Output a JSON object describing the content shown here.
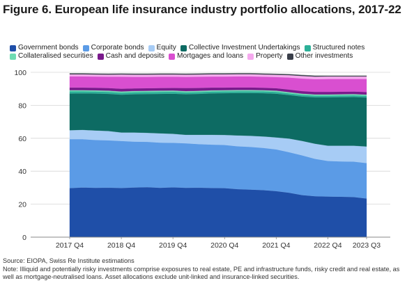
{
  "figure": {
    "title": "Figure 6. European life insurance industry portfolio allocations, 2017-22",
    "source": "Source: EIOPA, Swiss Re Institute estimations",
    "note": "Note: Illiquid and potentially risky investments comprise exposures to real estate, PE and infrastructure funds, risky credit and real estate, as well as mortgage-neutralised loans. Asset allocations exclude unit-linked and insurance-linked securities."
  },
  "chart_data": {
    "type": "area",
    "stacked": true,
    "x": [
      "2017 Q4",
      "2018 Q1",
      "2018 Q2",
      "2018 Q3",
      "2018 Q4",
      "2019 Q1",
      "2019 Q2",
      "2019 Q3",
      "2019 Q4",
      "2020 Q1",
      "2020 Q2",
      "2020 Q3",
      "2020 Q4",
      "2021 Q1",
      "2021 Q2",
      "2021 Q3",
      "2021 Q4",
      "2022 Q1",
      "2022 Q2",
      "2022 Q3",
      "2022 Q4",
      "2023 Q1",
      "2023 Q2",
      "2023 Q3"
    ],
    "xticks": [
      "2017 Q4",
      "2018 Q4",
      "2019 Q4",
      "2020 Q4",
      "2021 Q4",
      "2022 Q4",
      "2023 Q3"
    ],
    "ylim": [
      0,
      100
    ],
    "yticks": [
      0,
      20,
      40,
      60,
      80,
      100
    ],
    "grid": true,
    "legend_position": "top",
    "series": [
      {
        "name": "Government bonds",
        "color": "#1f4fa8",
        "values": [
          29.8,
          30.2,
          30.0,
          30.1,
          29.9,
          30.2,
          30.4,
          30.0,
          30.3,
          30.0,
          30.1,
          29.9,
          29.8,
          29.2,
          28.9,
          28.6,
          28.0,
          27.0,
          25.6,
          24.9,
          24.7,
          24.6,
          24.4,
          23.5
        ]
      },
      {
        "name": "Corporate bonds",
        "color": "#5b9be6",
        "values": [
          29.7,
          29.3,
          29.0,
          28.7,
          28.5,
          27.8,
          27.5,
          27.4,
          27.0,
          27.0,
          26.4,
          26.3,
          26.2,
          26.0,
          25.9,
          25.6,
          25.3,
          24.6,
          24.1,
          22.7,
          21.6,
          21.4,
          21.5,
          21.5
        ]
      },
      {
        "name": "Equity",
        "color": "#a7ccf5",
        "values": [
          5.4,
          5.6,
          5.7,
          5.6,
          5.1,
          5.5,
          5.4,
          5.6,
          5.4,
          5.1,
          5.6,
          5.9,
          6.0,
          6.5,
          6.7,
          6.9,
          7.2,
          8.2,
          8.7,
          9.1,
          9.2,
          9.5,
          9.6,
          10.0
        ]
      },
      {
        "name": "Collective Investment Undertakings",
        "color": "#0d6b63",
        "values": [
          22.3,
          22.2,
          22.5,
          22.6,
          23.0,
          23.3,
          23.6,
          24.0,
          24.4,
          24.7,
          24.9,
          25.2,
          25.4,
          25.8,
          26.0,
          26.3,
          26.6,
          26.5,
          27.0,
          28.2,
          29.4,
          29.5,
          29.6,
          29.8
        ]
      },
      {
        "name": "Structured notes",
        "color": "#2cb098",
        "values": [
          1.3,
          1.2,
          1.2,
          1.2,
          1.2,
          1.2,
          1.2,
          1.2,
          1.2,
          1.1,
          1.1,
          1.1,
          1.1,
          1.1,
          1.1,
          1.1,
          1.1,
          1.0,
          1.0,
          1.0,
          1.0,
          1.0,
          1.0,
          1.0
        ]
      },
      {
        "name": "Collateralised securities",
        "color": "#6fdcb2",
        "values": [
          0.7,
          0.7,
          0.7,
          0.7,
          0.7,
          0.7,
          0.7,
          0.7,
          0.7,
          0.7,
          0.7,
          0.7,
          0.7,
          0.7,
          0.7,
          0.7,
          0.7,
          0.7,
          0.7,
          0.7,
          0.7,
          0.7,
          0.7,
          0.7
        ]
      },
      {
        "name": "Cash and deposits",
        "color": "#7a1a8c",
        "values": [
          1.6,
          1.6,
          1.6,
          1.6,
          1.7,
          1.6,
          1.6,
          1.6,
          1.6,
          1.9,
          1.8,
          1.7,
          1.6,
          1.6,
          1.6,
          1.5,
          1.5,
          1.6,
          1.6,
          1.6,
          1.6,
          1.6,
          1.6,
          1.6
        ]
      },
      {
        "name": "Mortgages and loans",
        "color": "#d94fd0",
        "values": [
          6.8,
          6.8,
          6.8,
          6.9,
          7.3,
          7.0,
          6.9,
          6.9,
          6.8,
          6.8,
          6.8,
          6.7,
          6.7,
          6.7,
          6.7,
          6.7,
          6.8,
          7.3,
          7.6,
          7.7,
          7.8,
          7.7,
          7.6,
          7.9
        ]
      },
      {
        "name": "Property",
        "color": "#f5a9ee",
        "values": [
          1.2,
          1.2,
          1.2,
          1.2,
          1.3,
          1.3,
          1.3,
          1.3,
          1.3,
          1.3,
          1.3,
          1.3,
          1.3,
          1.3,
          1.3,
          1.3,
          1.3,
          1.4,
          1.5,
          1.5,
          1.5,
          1.5,
          1.5,
          1.5
        ]
      },
      {
        "name": "Other investments",
        "color": "#3a3f4a",
        "values": [
          0.6,
          0.6,
          0.6,
          0.6,
          0.6,
          0.6,
          0.6,
          0.6,
          0.6,
          0.6,
          0.6,
          0.6,
          0.6,
          0.6,
          0.6,
          0.6,
          0.6,
          0.6,
          0.6,
          0.6,
          0.5,
          0.5,
          0.5,
          0.5
        ]
      }
    ]
  }
}
